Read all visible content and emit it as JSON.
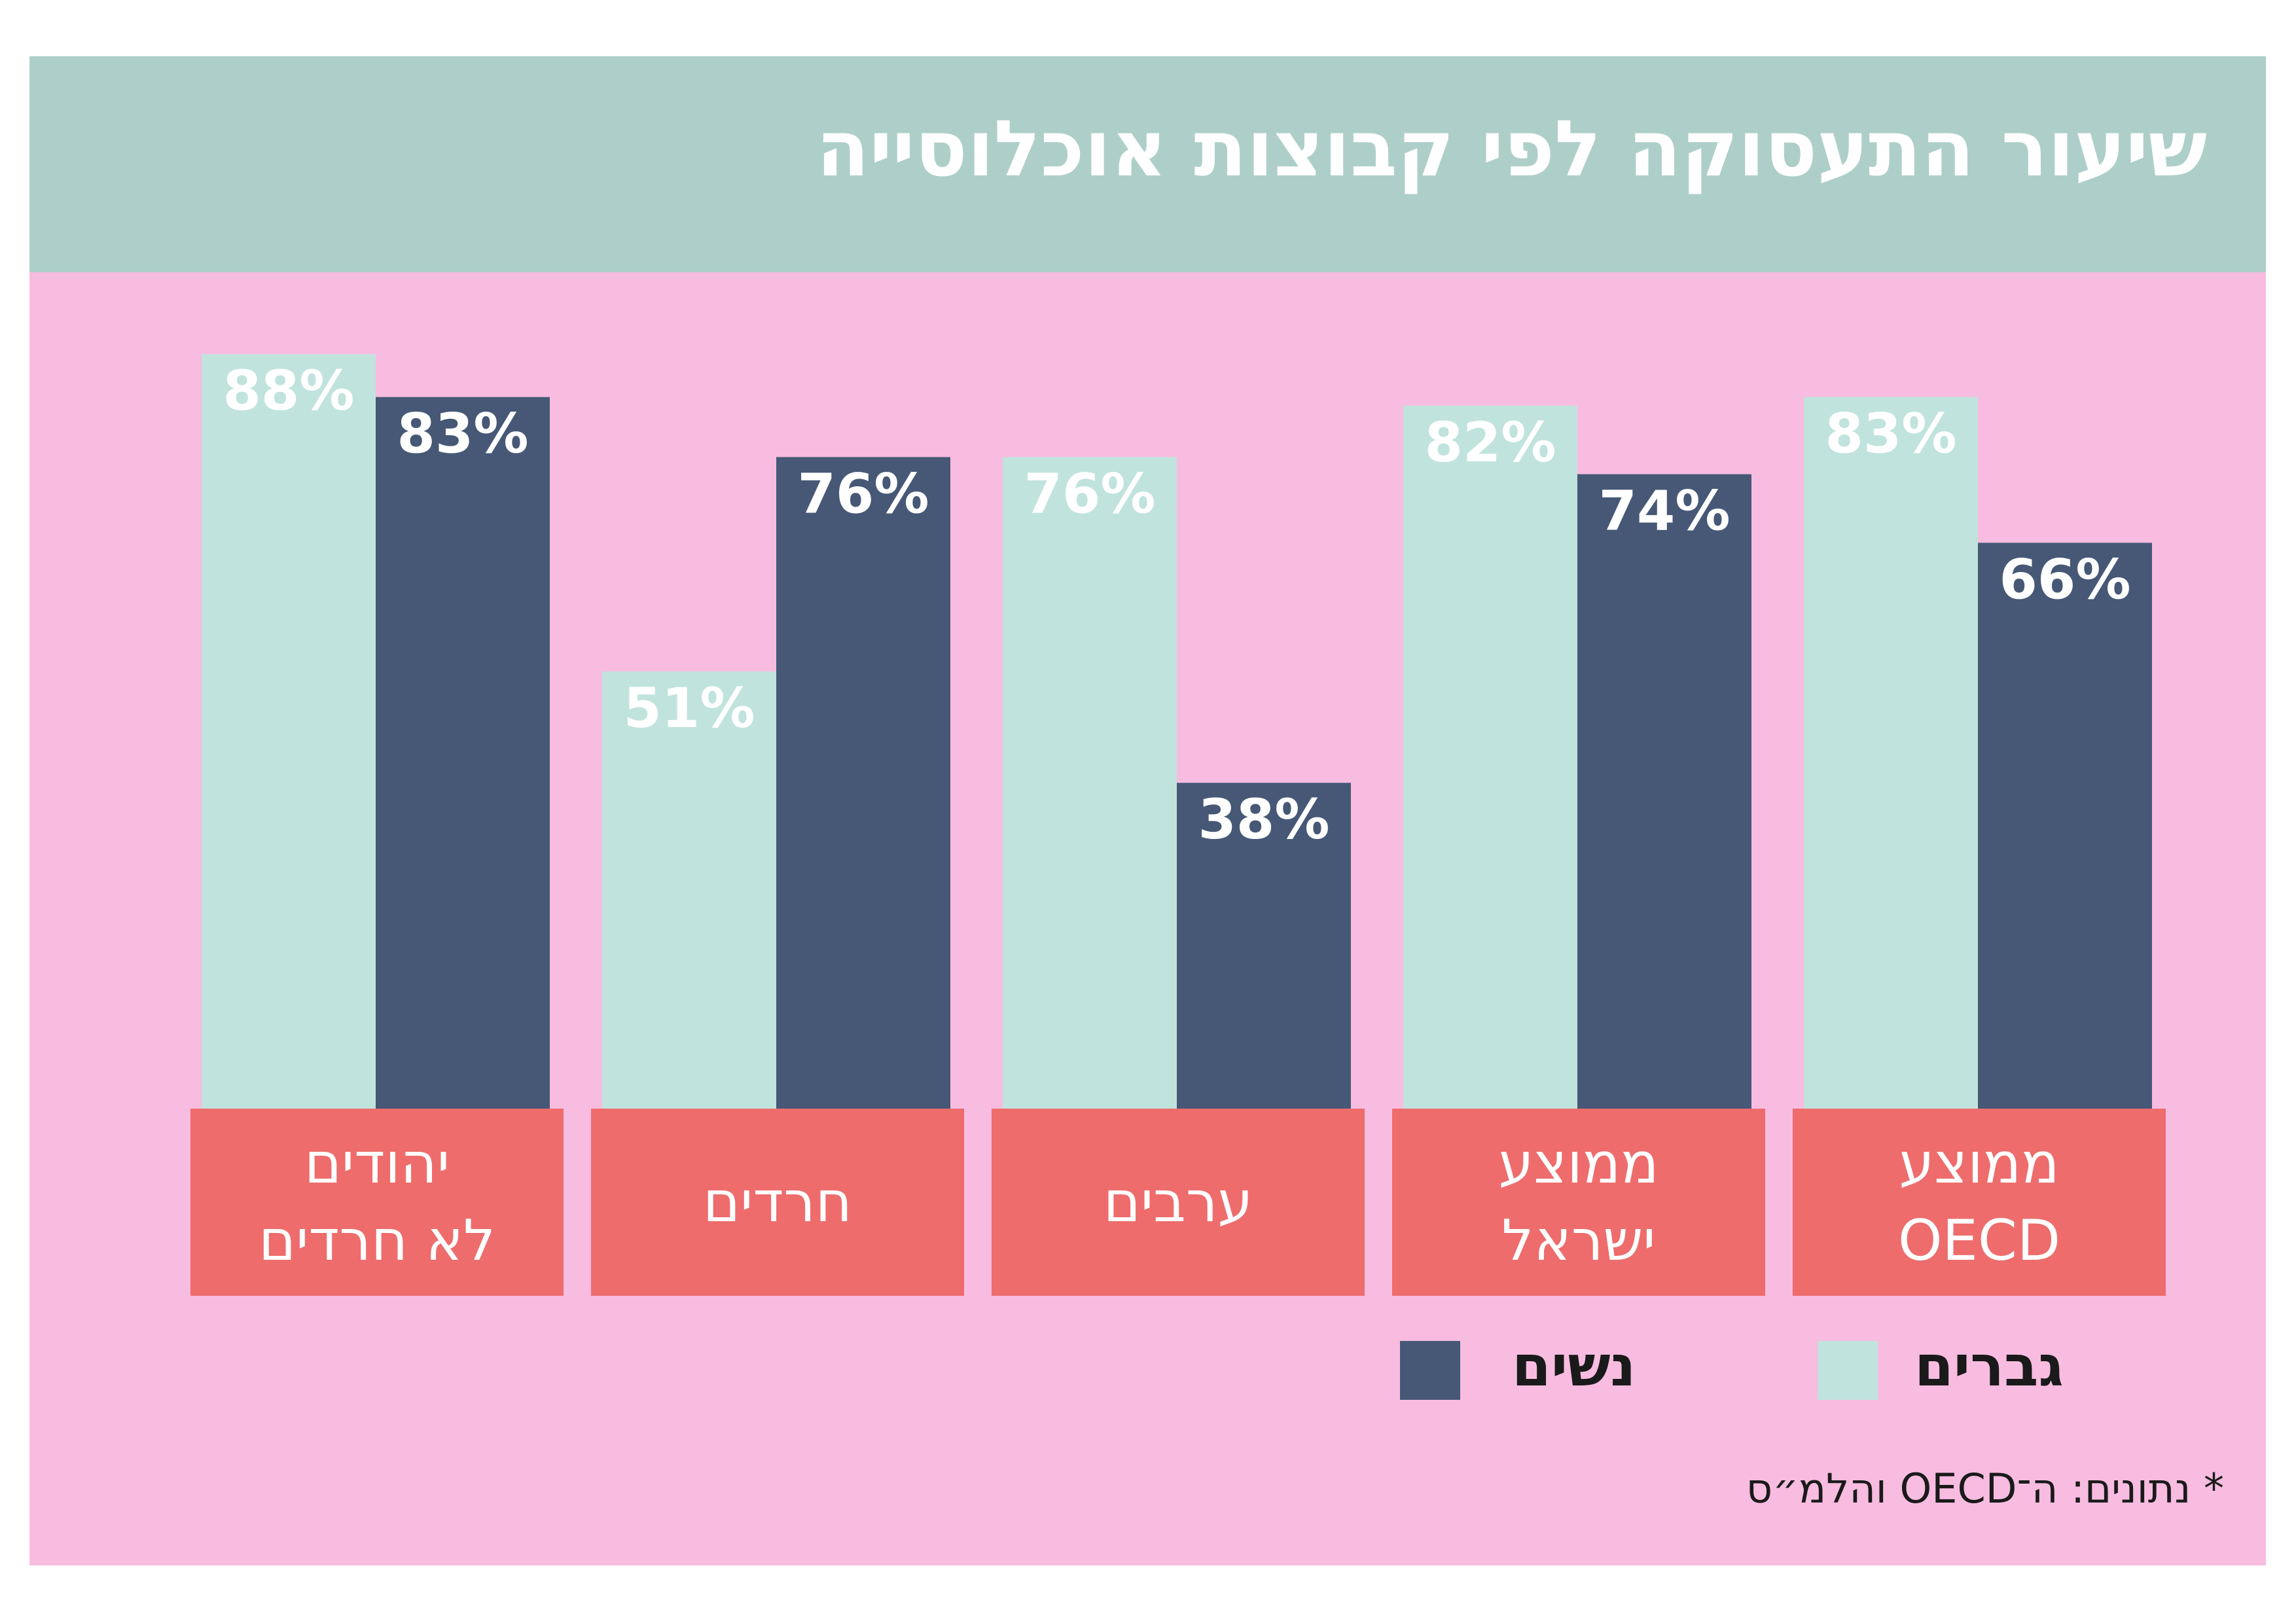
{
  "title": "שיעור התעסוקה לפי קבוצות אוכלוסייה",
  "colors": {
    "background": "#f8bce0",
    "header": "#aecfc9",
    "men": "#c0e3dd",
    "women": "#465876",
    "category_box": "#ee6c6c",
    "label_text": "#ffffff"
  },
  "chart_data": {
    "type": "bar",
    "title": "שיעור התעסוקה לפי קבוצות אוכלוסייה",
    "ylim": [
      0,
      100
    ],
    "grid": false,
    "legend_position": "bottom",
    "categories": [
      {
        "line1": "יהודים",
        "line2": "לא חרדים"
      },
      {
        "line1": "חרדים",
        "line2": ""
      },
      {
        "line1": "ערבים",
        "line2": ""
      },
      {
        "line1": "ממוצע",
        "line2": "ישראל"
      },
      {
        "line1": "ממוצע",
        "line2": "OECD"
      }
    ],
    "series": [
      {
        "name": "גברים",
        "color": "#c0e3dd",
        "label_color": "#ffffff",
        "values": [
          88,
          51,
          76,
          82,
          83
        ],
        "labels": [
          "88%",
          "51%",
          "76%",
          "82%",
          "83%"
        ]
      },
      {
        "name": "נשים",
        "color": "#465876",
        "label_color": "#ffffff",
        "values": [
          83,
          76,
          38,
          74,
          66
        ],
        "labels": [
          "83%",
          "76%",
          "38%",
          "74%",
          "66%"
        ]
      }
    ]
  },
  "legend": {
    "women_label": "נשים",
    "men_label": "גברים"
  },
  "source": "* נתונים: ה־OECD והלמ״ס"
}
